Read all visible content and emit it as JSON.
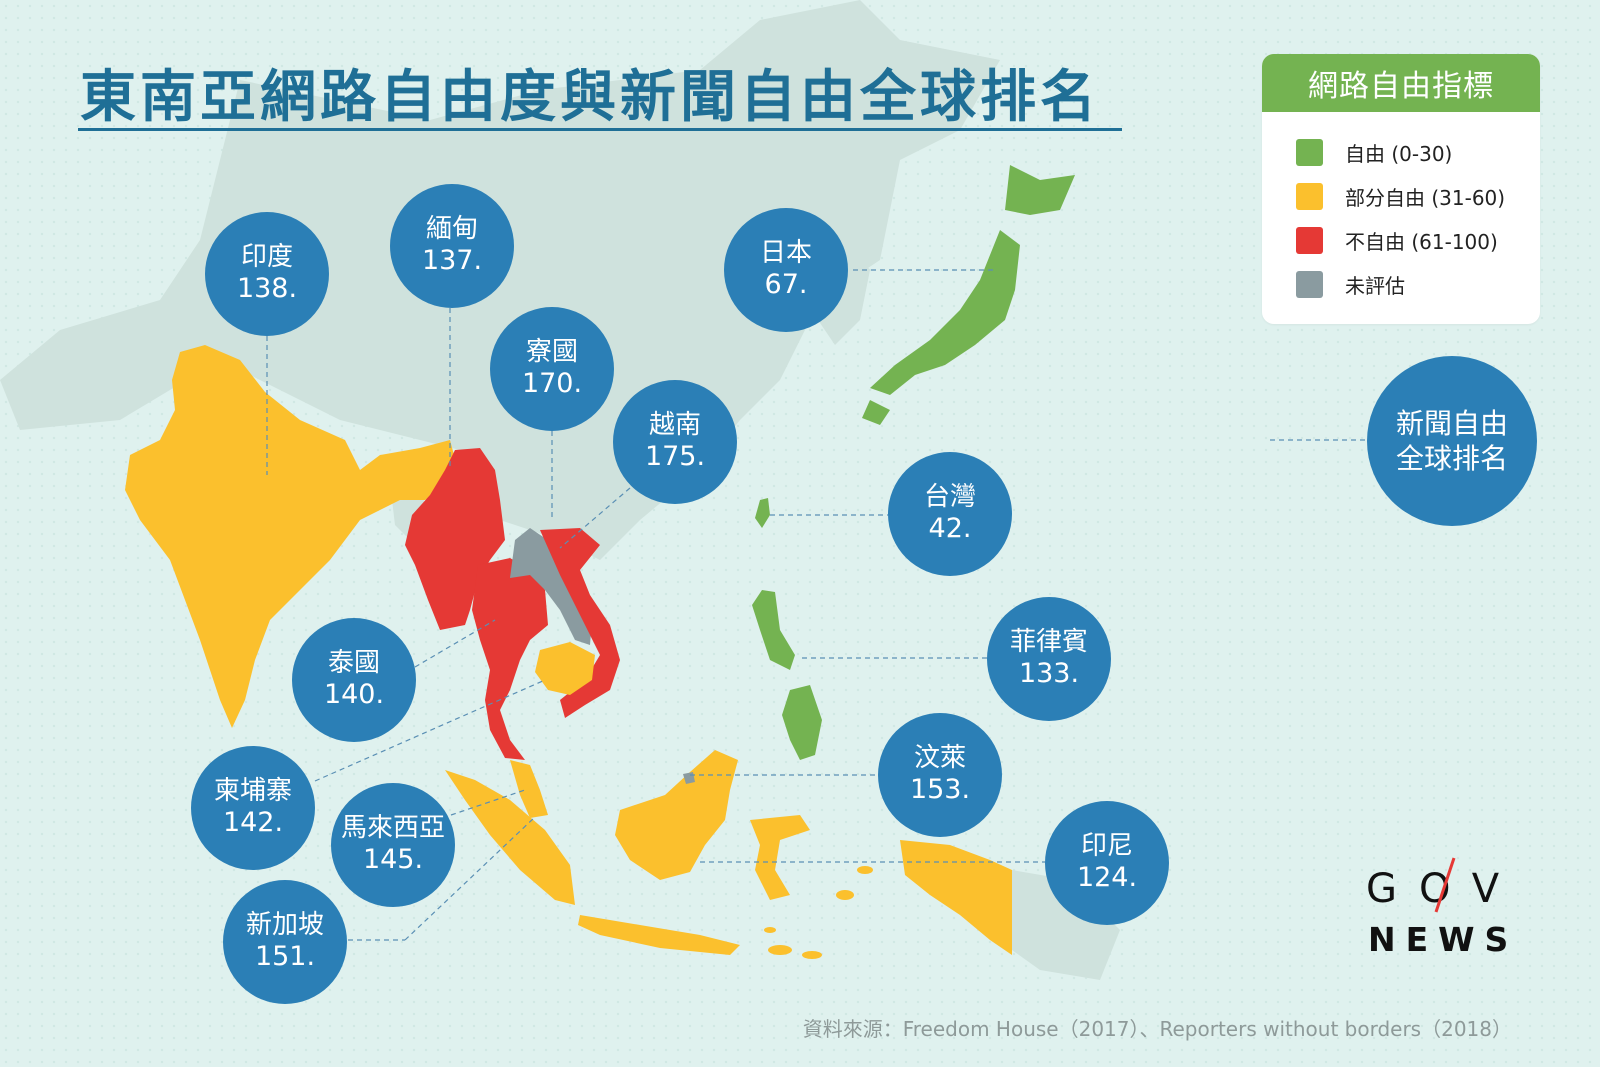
{
  "title": "東南亞網路自由度與新聞自由全球排名",
  "legend": {
    "title": "網路自由指標",
    "items": [
      {
        "label": "自由 (0-30)",
        "color": "#74b351"
      },
      {
        "label": "部分自由 (31-60)",
        "color": "#fbc02d"
      },
      {
        "label": "不自由 (61-100)",
        "color": "#e53935"
      },
      {
        "label": "未評估",
        "color": "#8a9ba0"
      }
    ]
  },
  "press_freedom_label": {
    "line1": "新聞自由",
    "line2": "全球排名"
  },
  "countries": [
    {
      "name": "印度",
      "rank": "138.",
      "status": "部分自由"
    },
    {
      "name": "緬甸",
      "rank": "137.",
      "status": "不自由"
    },
    {
      "name": "寮國",
      "rank": "170.",
      "status": "未評估"
    },
    {
      "name": "越南",
      "rank": "175.",
      "status": "不自由"
    },
    {
      "name": "日本",
      "rank": "67.",
      "status": "自由"
    },
    {
      "name": "台灣",
      "rank": "42.",
      "status": "自由"
    },
    {
      "name": "泰國",
      "rank": "140.",
      "status": "不自由"
    },
    {
      "name": "菲律賓",
      "rank": "133.",
      "status": "自由"
    },
    {
      "name": "汶萊",
      "rank": "153.",
      "status": "未評估"
    },
    {
      "name": "柬埔寨",
      "rank": "142.",
      "status": "部分自由"
    },
    {
      "name": "馬來西亞",
      "rank": "145.",
      "status": "部分自由"
    },
    {
      "name": "印尼",
      "rank": "124.",
      "status": "部分自由"
    },
    {
      "name": "新加坡",
      "rank": "151.",
      "status": "部分自由"
    }
  ],
  "logo": {
    "gov": "GOV",
    "news": "NEWS"
  },
  "source": "資料來源：Freedom House（2017）、Reporters without borders（2018）"
}
